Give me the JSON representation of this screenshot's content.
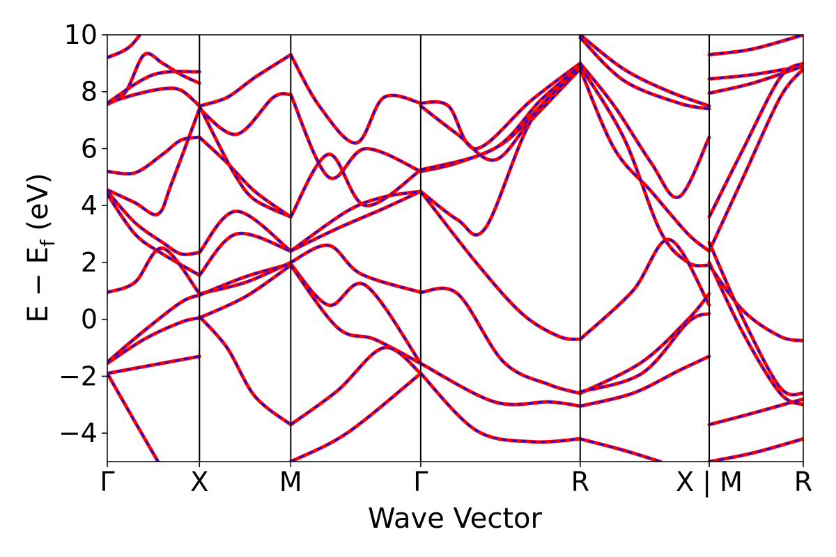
{
  "chart_data": {
    "type": "line",
    "title": "",
    "xlabel": "Wave Vector",
    "ylabel_main": "E − E",
    "ylabel_sub": "f",
    "ylabel_unit": " (eV)",
    "ylim": [
      -5,
      10
    ],
    "yticks": [
      -4,
      -2,
      0,
      2,
      4,
      6,
      8,
      10
    ],
    "ytick_labels": [
      "−4",
      "−2",
      "0",
      "2",
      "4",
      "6",
      "8",
      "10"
    ],
    "xlim": [
      0,
      7.55
    ],
    "kpoints": [
      {
        "label": "Γ",
        "x": 0.0
      },
      {
        "label": "X",
        "x": 1.0
      },
      {
        "label": "M",
        "x": 1.99
      },
      {
        "label": "Γ",
        "x": 3.4
      },
      {
        "label": "R",
        "x": 5.13
      },
      {
        "label": "X | M",
        "x": 6.53
      },
      {
        "label": "R",
        "x": 7.55
      }
    ],
    "grid": false,
    "legend": "none",
    "colors": {
      "series_solid": "#ff0000",
      "series_dashed": "#0000ff"
    },
    "series": [
      {
        "style": "solid-red-dashed-blue",
        "x": [
          0,
          0.25,
          0.5,
          0.75,
          1.0
        ],
        "y": [
          9.2,
          9.6,
          10.6,
          11.0,
          10.9
        ]
      },
      {
        "style": "solid-red-dashed-blue",
        "x": [
          0,
          0.2,
          0.4,
          0.6,
          0.8,
          1.0
        ],
        "y": [
          7.55,
          8.0,
          9.3,
          9.0,
          8.6,
          8.3
        ]
      },
      {
        "style": "solid-red-dashed-blue",
        "x": [
          0,
          0.3,
          0.6,
          0.8,
          1.0
        ],
        "y": [
          7.6,
          7.9,
          8.1,
          8.05,
          7.5
        ]
      },
      {
        "style": "solid-red-dashed-blue",
        "x": [
          0,
          0.5,
          1.0
        ],
        "y": [
          7.6,
          8.6,
          8.7
        ]
      },
      {
        "style": "solid-red-dashed-blue",
        "x": [
          0,
          0.3,
          0.6,
          0.8,
          1.0
        ],
        "y": [
          5.2,
          5.15,
          5.8,
          6.3,
          6.4
        ]
      },
      {
        "style": "solid-red-dashed-blue",
        "x": [
          0,
          0.3,
          0.55,
          0.7,
          1.0
        ],
        "y": [
          4.55,
          4.1,
          3.7,
          4.8,
          7.4
        ]
      },
      {
        "style": "solid-red-dashed-blue",
        "x": [
          0,
          0.3,
          0.6,
          0.8,
          1.0
        ],
        "y": [
          4.5,
          3.4,
          2.7,
          2.3,
          2.35
        ]
      },
      {
        "style": "solid-red-dashed-blue",
        "x": [
          0,
          0.3,
          0.6,
          1.0
        ],
        "y": [
          4.4,
          3.0,
          2.3,
          1.55
        ]
      },
      {
        "style": "solid-red-dashed-blue",
        "x": [
          0,
          0.3,
          0.6,
          1.0
        ],
        "y": [
          0.95,
          1.3,
          2.5,
          0.9
        ]
      },
      {
        "style": "solid-red-dashed-blue",
        "x": [
          0,
          0.4,
          0.8,
          1.0
        ],
        "y": [
          -1.55,
          -0.7,
          -0.1,
          0.05
        ]
      },
      {
        "style": "solid-red-dashed-blue",
        "x": [
          0,
          0.4,
          0.8,
          1.0
        ],
        "y": [
          -1.5,
          -0.4,
          0.6,
          0.85
        ]
      },
      {
        "style": "solid-red-dashed-blue",
        "x": [
          0,
          0.5,
          1.0
        ],
        "y": [
          -1.9,
          -1.6,
          -1.3
        ]
      },
      {
        "style": "solid-red-dashed-blue",
        "x": [
          0,
          0.3,
          0.55
        ],
        "y": [
          -1.9,
          -3.6,
          -5.0
        ]
      },
      {
        "style": "solid-red-dashed-blue",
        "x": [
          1.0,
          1.3,
          1.6,
          1.99
        ],
        "y": [
          7.5,
          7.8,
          8.5,
          9.3
        ]
      },
      {
        "style": "solid-red-dashed-blue",
        "x": [
          1.0,
          1.4,
          1.8,
          1.99
        ],
        "y": [
          7.4,
          6.5,
          7.8,
          7.9
        ]
      },
      {
        "style": "solid-red-dashed-blue",
        "x": [
          1.0,
          1.3,
          1.6,
          1.99
        ],
        "y": [
          6.4,
          5.5,
          4.5,
          3.6
        ]
      },
      {
        "style": "solid-red-dashed-blue",
        "x": [
          1.0,
          1.2,
          1.4,
          1.6,
          1.99
        ],
        "y": [
          7.5,
          6.2,
          5.0,
          4.2,
          3.6
        ]
      },
      {
        "style": "solid-red-dashed-blue",
        "x": [
          1.0,
          1.4,
          1.99
        ],
        "y": [
          2.35,
          3.8,
          2.4
        ]
      },
      {
        "style": "solid-red-dashed-blue",
        "x": [
          1.0,
          1.4,
          1.99
        ],
        "y": [
          1.55,
          3.0,
          2.4
        ]
      },
      {
        "style": "solid-red-dashed-blue",
        "x": [
          1.0,
          1.5,
          1.99
        ],
        "y": [
          0.9,
          1.3,
          2.0
        ]
      },
      {
        "style": "solid-red-dashed-blue",
        "x": [
          1.0,
          1.5,
          1.99
        ],
        "y": [
          0.85,
          1.5,
          1.95
        ]
      },
      {
        "style": "solid-red-dashed-blue",
        "x": [
          1.0,
          1.5,
          1.99
        ],
        "y": [
          0.05,
          0.8,
          1.9
        ]
      },
      {
        "style": "solid-red-dashed-blue",
        "x": [
          1.0,
          1.3,
          1.6,
          1.99
        ],
        "y": [
          0.1,
          -1.0,
          -2.7,
          -3.7
        ]
      },
      {
        "style": "solid-red-dashed-blue",
        "x": [
          1.99,
          2.3,
          2.7,
          3.0,
          3.4
        ],
        "y": [
          9.3,
          7.5,
          6.2,
          7.8,
          7.6
        ]
      },
      {
        "style": "solid-red-dashed-blue",
        "x": [
          1.99,
          2.4,
          2.8,
          3.4
        ],
        "y": [
          7.9,
          5.0,
          6.0,
          5.2
        ]
      },
      {
        "style": "solid-red-dashed-blue",
        "x": [
          1.99,
          2.4,
          2.8,
          3.4
        ],
        "y": [
          3.6,
          5.8,
          4.0,
          5.25
        ]
      },
      {
        "style": "solid-red-dashed-blue",
        "x": [
          1.99,
          2.5,
          3.0,
          3.4
        ],
        "y": [
          2.4,
          3.2,
          3.9,
          4.5
        ]
      },
      {
        "style": "solid-red-dashed-blue",
        "x": [
          1.99,
          2.6,
          3.0,
          3.4
        ],
        "y": [
          2.4,
          3.8,
          4.3,
          4.5
        ]
      },
      {
        "style": "solid-red-dashed-blue",
        "x": [
          1.99,
          2.4,
          2.75,
          3.4
        ],
        "y": [
          2.0,
          2.6,
          1.6,
          0.95
        ]
      },
      {
        "style": "solid-red-dashed-blue",
        "x": [
          1.99,
          2.4,
          2.8,
          3.4
        ],
        "y": [
          1.95,
          0.5,
          1.2,
          -1.55
        ]
      },
      {
        "style": "solid-red-dashed-blue",
        "x": [
          1.99,
          2.5,
          2.9,
          3.4
        ],
        "y": [
          1.9,
          -0.3,
          -0.7,
          -1.55
        ]
      },
      {
        "style": "solid-red-dashed-blue",
        "x": [
          1.99,
          2.5,
          3.0,
          3.4
        ],
        "y": [
          -3.7,
          -2.5,
          -1.0,
          -1.9
        ]
      },
      {
        "style": "solid-red-dashed-blue",
        "x": [
          1.99,
          2.6,
          3.4
        ],
        "y": [
          -5.0,
          -4.0,
          -1.9
        ]
      },
      {
        "style": "solid-red-dashed-blue",
        "x": [
          3.4,
          3.7,
          4.0,
          4.6,
          5.13
        ],
        "y": [
          7.6,
          7.5,
          6.0,
          7.7,
          9.0
        ]
      },
      {
        "style": "solid-red-dashed-blue",
        "x": [
          3.4,
          3.8,
          4.2,
          4.6,
          5.13
        ],
        "y": [
          7.5,
          6.5,
          5.6,
          7.0,
          8.8
        ]
      },
      {
        "style": "solid-red-dashed-blue",
        "x": [
          3.4,
          3.8,
          4.3,
          4.7,
          5.13
        ],
        "y": [
          5.2,
          5.5,
          6.2,
          7.5,
          9.0
        ]
      },
      {
        "style": "solid-red-dashed-blue",
        "x": [
          3.4,
          4.2,
          4.7,
          5.13
        ],
        "y": [
          5.25,
          6.0,
          7.7,
          8.9
        ]
      },
      {
        "style": "solid-red-dashed-blue",
        "x": [
          3.4,
          3.8,
          4.1,
          4.6,
          5.13
        ],
        "y": [
          4.5,
          3.5,
          3.2,
          7.0,
          8.8
        ]
      },
      {
        "style": "solid-red-dashed-blue",
        "x": [
          3.4,
          4.0,
          4.5,
          4.9,
          5.13
        ],
        "y": [
          4.5,
          2.0,
          0.2,
          -0.6,
          -0.7
        ]
      },
      {
        "style": "solid-red-dashed-blue",
        "x": [
          3.4,
          3.8,
          4.3,
          4.8,
          5.13
        ],
        "y": [
          0.95,
          0.9,
          -1.5,
          -2.3,
          -2.6
        ]
      },
      {
        "style": "solid-red-dashed-blue",
        "x": [
          3.4,
          4.2,
          4.8,
          5.13
        ],
        "y": [
          -1.55,
          -2.9,
          -2.9,
          -3.05
        ]
      },
      {
        "style": "solid-red-dashed-blue",
        "x": [
          3.4,
          4.0,
          4.6,
          5.13
        ],
        "y": [
          -1.9,
          -3.9,
          -4.3,
          -4.2
        ]
      },
      {
        "style": "solid-red-dashed-blue",
        "x": [
          5.13,
          5.6,
          6.1,
          6.53
        ],
        "y": [
          10.0,
          8.8,
          8.0,
          7.5
        ]
      },
      {
        "style": "solid-red-dashed-blue",
        "x": [
          5.13,
          5.6,
          6.2,
          6.53
        ],
        "y": [
          9.9,
          8.4,
          7.6,
          7.4
        ]
      },
      {
        "style": "solid-red-dashed-blue",
        "x": [
          5.13,
          5.5,
          5.9,
          6.2,
          6.53
        ],
        "y": [
          9.0,
          7.5,
          5.5,
          4.3,
          6.4
        ]
      },
      {
        "style": "solid-red-dashed-blue",
        "x": [
          5.13,
          5.5,
          5.9,
          6.3,
          6.53
        ],
        "y": [
          8.8,
          6.0,
          4.5,
          3.0,
          2.4
        ]
      },
      {
        "style": "solid-red-dashed-blue",
        "x": [
          5.13,
          5.6,
          6.0,
          6.3,
          6.53
        ],
        "y": [
          8.9,
          6.4,
          3.1,
          2.0,
          1.9
        ]
      },
      {
        "style": "solid-red-dashed-blue",
        "x": [
          5.13,
          5.7,
          6.1,
          6.53
        ],
        "y": [
          -0.7,
          1.0,
          2.8,
          0.5
        ]
      },
      {
        "style": "solid-red-dashed-blue",
        "x": [
          5.13,
          5.8,
          6.3,
          6.53
        ],
        "y": [
          -2.6,
          -1.5,
          0.0,
          0.9
        ]
      },
      {
        "style": "solid-red-dashed-blue",
        "x": [
          5.13,
          5.8,
          6.3,
          6.53
        ],
        "y": [
          -2.55,
          -1.9,
          -0.1,
          0.2
        ]
      },
      {
        "style": "solid-red-dashed-blue",
        "x": [
          5.13,
          5.7,
          6.2,
          6.53
        ],
        "y": [
          -3.05,
          -2.6,
          -1.8,
          -1.3
        ]
      },
      {
        "style": "solid-red-dashed-blue",
        "x": [
          5.13,
          5.6,
          6.0
        ],
        "y": [
          -4.2,
          -4.6,
          -5.0
        ]
      },
      {
        "style": "solid-red-dashed-blue",
        "x": [
          6.53,
          7.0,
          7.55
        ],
        "y": [
          9.3,
          9.5,
          10.0
        ]
      },
      {
        "style": "solid-red-dashed-blue",
        "x": [
          6.53,
          7.0,
          7.55
        ],
        "y": [
          8.45,
          8.6,
          8.9
        ]
      },
      {
        "style": "solid-red-dashed-blue",
        "x": [
          6.53,
          7.0,
          7.55
        ],
        "y": [
          7.95,
          8.3,
          8.9
        ]
      },
      {
        "style": "solid-red-dashed-blue",
        "x": [
          6.53,
          6.9,
          7.3,
          7.55
        ],
        "y": [
          3.6,
          6.0,
          8.5,
          9.0
        ]
      },
      {
        "style": "solid-red-dashed-blue",
        "x": [
          6.53,
          6.9,
          7.3,
          7.55
        ],
        "y": [
          2.4,
          5.0,
          7.8,
          8.8
        ]
      },
      {
        "style": "solid-red-dashed-blue",
        "x": [
          6.53,
          6.9,
          7.3,
          7.55
        ],
        "y": [
          2.0,
          -0.5,
          -2.6,
          -3.0
        ]
      },
      {
        "style": "solid-red-dashed-blue",
        "x": [
          6.53,
          6.9,
          7.3,
          7.55
        ],
        "y": [
          1.9,
          0.3,
          -0.6,
          -0.75
        ]
      },
      {
        "style": "solid-red-dashed-blue",
        "x": [
          6.53,
          6.9,
          7.3,
          7.55
        ],
        "y": [
          2.7,
          0.0,
          -2.4,
          -2.6
        ]
      },
      {
        "style": "solid-red-dashed-blue",
        "x": [
          6.53,
          7.0,
          7.55
        ],
        "y": [
          -3.7,
          -3.3,
          -2.8
        ]
      },
      {
        "style": "solid-red-dashed-blue",
        "x": [
          6.53,
          7.0,
          7.55
        ],
        "y": [
          -5.0,
          -4.7,
          -4.2
        ]
      }
    ]
  }
}
